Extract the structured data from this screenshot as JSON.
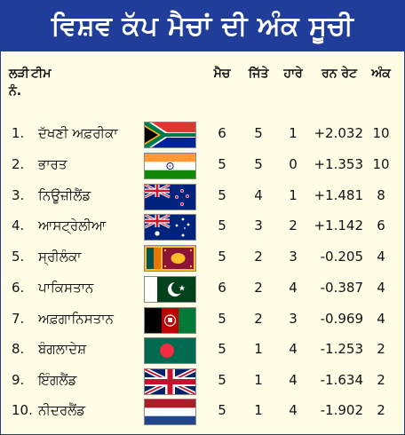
{
  "title": "ਵਿਸ਼ਵ ਕੱਪ ਮੈਚਾਂ ਦੀ ਅੰਕ ਸੂਚੀ",
  "headers": {
    "rank": "ਲੜੀ ਨੰ.",
    "team": "ਟੀਮ",
    "matches": "ਮੈਚ",
    "won": "ਜਿੱਤੇ",
    "lost": "ਹਾਰੇ",
    "nrr": "ਰਨ ਰੇਟ",
    "points": "ਅੰਕ"
  },
  "rows": [
    {
      "rank": "1.",
      "team": "ਦੱਖਣੀ ਅਫ਼ਰੀਕਾ",
      "flag": "south-africa-flag",
      "matches": "6",
      "won": "5",
      "lost": "1",
      "nrr": "+2.032",
      "points": "10"
    },
    {
      "rank": "2.",
      "team": "ਭਾਰਤ",
      "flag": "india-flag",
      "matches": "5",
      "won": "5",
      "lost": "0",
      "nrr": "+1.353",
      "points": "10"
    },
    {
      "rank": "3.",
      "team": "ਨਿਊਜ਼ੀਲੈਂਡ",
      "flag": "new-zealand-flag",
      "matches": "5",
      "won": "4",
      "lost": "1",
      "nrr": "+1.481",
      "points": "8"
    },
    {
      "rank": "4.",
      "team": "ਆਸਟ੍ਰੇਲੀਆ",
      "flag": "australia-flag",
      "matches": "5",
      "won": "3",
      "lost": "2",
      "nrr": "+1.142",
      "points": "6"
    },
    {
      "rank": "5.",
      "team": "ਸ੍ਰੀਲੰਕਾ",
      "flag": "sri-lanka-flag",
      "matches": "5",
      "won": "2",
      "lost": "3",
      "nrr": "-0.205",
      "points": "4"
    },
    {
      "rank": "6.",
      "team": "ਪਾਕਿਸਤਾਨ",
      "flag": "pakistan-flag",
      "matches": "6",
      "won": "2",
      "lost": "4",
      "nrr": "-0.387",
      "points": "4"
    },
    {
      "rank": "7.",
      "team": "ਅਫ਼ਗਾਨਿਸਤਾਨ",
      "flag": "afghanistan-flag",
      "matches": "5",
      "won": "2",
      "lost": "3",
      "nrr": "-0.969",
      "points": "4"
    },
    {
      "rank": "8.",
      "team": "ਬੰਗਲਾਦੇਸ਼",
      "flag": "bangladesh-flag",
      "matches": "5",
      "won": "1",
      "lost": "4",
      "nrr": "-1.253",
      "points": "2"
    },
    {
      "rank": "9.",
      "team": "ਇੰਗਲੈਂਡ",
      "flag": "england-flag",
      "matches": "5",
      "won": "1",
      "lost": "4",
      "nrr": "-1.634",
      "points": "2"
    },
    {
      "rank": "10.",
      "team": "ਨੀਦਰਲੈਂਡ",
      "flag": "netherlands-flag",
      "matches": "5",
      "won": "1",
      "lost": "4",
      "nrr": "-1.902",
      "points": "2"
    }
  ]
}
